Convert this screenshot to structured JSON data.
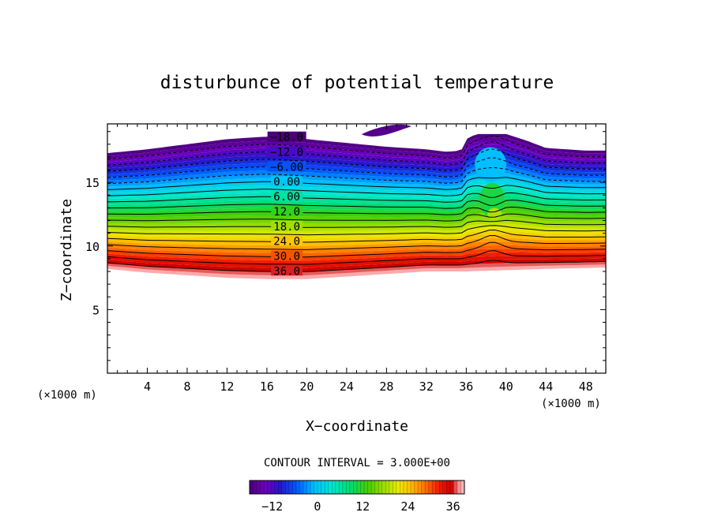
{
  "chart_data": {
    "type": "contour",
    "title": "disturbunce of potential temperature",
    "xlabel": "X−coordinate",
    "ylabel": "Z−coordinate",
    "x_unit": "(×1000 m)",
    "y_unit": "(×1000 m)",
    "xlim": [
      0,
      50
    ],
    "ylim": [
      0,
      19.6
    ],
    "x_ticks": [
      4,
      8,
      12,
      16,
      20,
      24,
      28,
      32,
      36,
      40,
      44,
      48
    ],
    "y_ticks": [
      5,
      10,
      15
    ],
    "contour_interval_text": "CONTOUR INTERVAL = 3.000E+00",
    "contour_interval": 3,
    "contour_labels": [
      {
        "text": "−18.0",
        "value": -18
      },
      {
        "text": "−12.0",
        "value": -12
      },
      {
        "text": "−6.00",
        "value": -6
      },
      {
        "text": "0.00",
        "value": 0
      },
      {
        "text": "6.00",
        "value": 6
      },
      {
        "text": "12.0",
        "value": 12
      },
      {
        "text": "18.0",
        "value": 18
      },
      {
        "text": "24.0",
        "value": 24
      },
      {
        "text": "30.0",
        "value": 30
      },
      {
        "text": "36.0",
        "value": 36
      }
    ],
    "field_lower_boundary_z": [
      [
        0,
        8.2
      ],
      [
        4,
        7.9
      ],
      [
        8,
        7.7
      ],
      [
        12,
        7.5
      ],
      [
        16,
        7.4
      ],
      [
        20,
        7.4
      ],
      [
        24,
        7.6
      ],
      [
        28,
        7.8
      ],
      [
        32,
        8.0
      ],
      [
        36,
        8.0
      ],
      [
        40,
        8.1
      ],
      [
        44,
        8.2
      ],
      [
        50,
        8.3
      ]
    ],
    "field_upper_boundary_z": [
      [
        0,
        17.3
      ],
      [
        4,
        17.6
      ],
      [
        8,
        18.0
      ],
      [
        12,
        18.4
      ],
      [
        16,
        18.6
      ],
      [
        20,
        18.4
      ],
      [
        24,
        18.1
      ],
      [
        28,
        17.8
      ],
      [
        32,
        17.6
      ],
      [
        34,
        17.4
      ],
      [
        35.5,
        17.5
      ],
      [
        36,
        18.4
      ],
      [
        37,
        18.8
      ],
      [
        40,
        18.8
      ],
      [
        42,
        18.3
      ],
      [
        44,
        17.7
      ],
      [
        48,
        17.5
      ],
      [
        50,
        17.5
      ]
    ],
    "isolated_region": {
      "x_range": [
        25.5,
        30.5
      ],
      "z_center": 18.9
    },
    "colorbar": {
      "range": [
        -18,
        39
      ],
      "tick_values": [
        -12,
        0,
        12,
        24,
        36
      ],
      "tick_labels": [
        "−12",
        "0",
        "12",
        "24",
        "36"
      ]
    }
  }
}
